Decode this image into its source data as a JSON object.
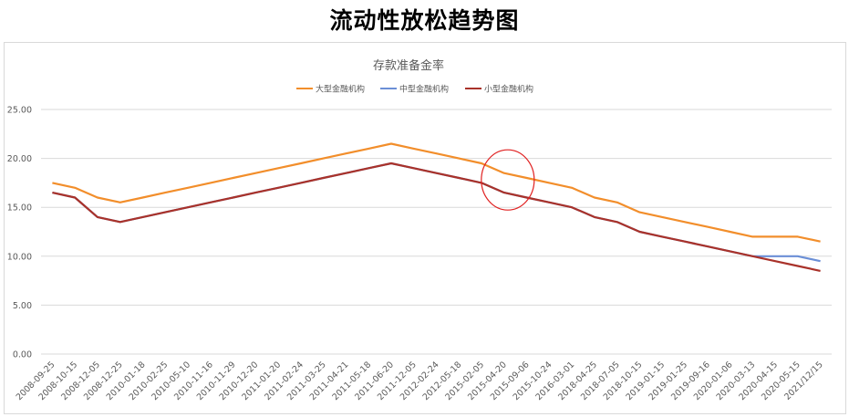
{
  "page_title": "流动性放松趋势图",
  "chart_data": {
    "type": "line",
    "title": "存款准备金率",
    "xlabel": "",
    "ylabel": "",
    "ylim": [
      0,
      25
    ],
    "yticks": [
      "0.00",
      "5.00",
      "10.00",
      "15.00",
      "20.00",
      "25.00"
    ],
    "grid": true,
    "legend_position": "top-center",
    "categories": [
      "2008-09-25",
      "2008-10-15",
      "2008-12-05",
      "2008-12-25",
      "2010-01-18",
      "2010-02-25",
      "2010-05-10",
      "2010-11-16",
      "2010-11-29",
      "2010-12-20",
      "2011-01-20",
      "2011-02-24",
      "2011-03-25",
      "2011-04-21",
      "2011-05-18",
      "2011-06-20",
      "2011-12-05",
      "2012-02-24",
      "2012-05-18",
      "2015-02-05",
      "2015-04-20",
      "2015-09-06",
      "2015-10-24",
      "2016-03-01",
      "2018-04-25",
      "2018-07-05",
      "2018-10-15",
      "2019-01-15",
      "2019-01-25",
      "2019-09-16",
      "2020-01-06",
      "2020-03-13",
      "2020-04-15",
      "2020-05-15",
      "2021/12/15"
    ],
    "series": [
      {
        "name": "大型金融机构",
        "color": "#f28e2b",
        "values": [
          17.5,
          17,
          16,
          15.5,
          16,
          16.5,
          17,
          17.5,
          18,
          18.5,
          19,
          19.5,
          20,
          20.5,
          21,
          21.5,
          21,
          20.5,
          20,
          19.5,
          18.5,
          18,
          17.5,
          17,
          16,
          15.5,
          14.5,
          14,
          13.5,
          13,
          12.5,
          12,
          12,
          12,
          11.5
        ]
      },
      {
        "name": "中型金融机构",
        "color": "#6b8fd6",
        "values": [
          16.5,
          16,
          14,
          13.5,
          14,
          14.5,
          15,
          15.5,
          16,
          16.5,
          17,
          17.5,
          18,
          18.5,
          19,
          19.5,
          19,
          18.5,
          18,
          17.5,
          16.5,
          16,
          15.5,
          15,
          14,
          13.5,
          12.5,
          12,
          11.5,
          11,
          10.5,
          10,
          10,
          10,
          9.5
        ]
      },
      {
        "name": "小型金融机构",
        "color": "#a9322a",
        "values": [
          16.5,
          16,
          14,
          13.5,
          14,
          14.5,
          15,
          15.5,
          16,
          16.5,
          17,
          17.5,
          18,
          18.5,
          19,
          19.5,
          19,
          18.5,
          18,
          17.5,
          16.5,
          16,
          15.5,
          15,
          14,
          13.5,
          12.5,
          12,
          11.5,
          11,
          10.5,
          10,
          9.5,
          9,
          8.5
        ]
      }
    ],
    "annotation": {
      "shape": "circle",
      "color": "#e02020",
      "around_category": "2015-04-20"
    }
  }
}
